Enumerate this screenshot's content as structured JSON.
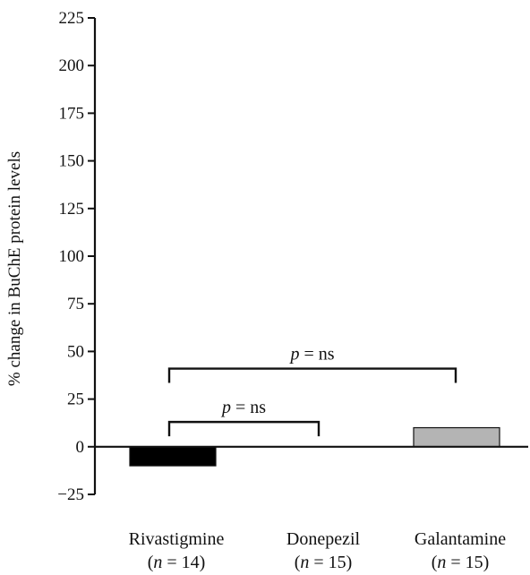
{
  "chart_data": {
    "type": "bar",
    "title": "",
    "xlabel": "",
    "ylabel": "% change in BuChE protein levels",
    "ylim": [
      -25,
      225
    ],
    "yticks": [
      225,
      200,
      175,
      150,
      125,
      100,
      75,
      50,
      25,
      0,
      -25
    ],
    "ytick_labels": [
      "225",
      "200",
      "175",
      "150",
      "125",
      "100",
      "75",
      "50",
      "25",
      "0",
      "−25"
    ],
    "grid": false,
    "legend": "none",
    "categories": [
      "Rivastigmine",
      "Donepezil",
      "Galantamine"
    ],
    "n_labels": [
      "(n = 14)",
      "(n = 15)",
      "(n = 15)"
    ],
    "values": [
      -10,
      0,
      10
    ],
    "bar_colors": [
      "#000000",
      "#ffffff",
      "#b4b4b4"
    ],
    "annotations": [
      {
        "from": "Rivastigmine",
        "to": "Galantamine",
        "text": "p = ns",
        "y": 41
      },
      {
        "from": "Rivastigmine",
        "to": "Donepezil",
        "text": "p = ns",
        "y": 13
      }
    ]
  }
}
